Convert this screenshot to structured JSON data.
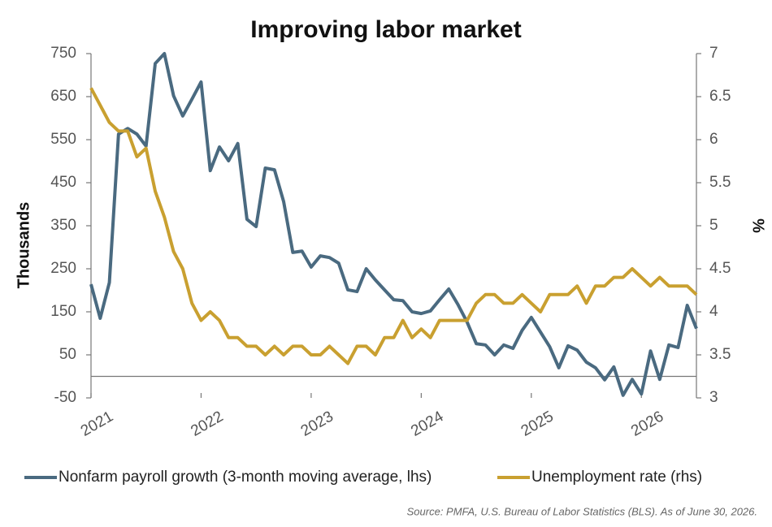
{
  "chart_data": {
    "type": "line",
    "title": "Improving labor market",
    "y_label": "Thousands",
    "y2_label": "%",
    "source": "Source: PMFA, U.S. Bureau of Labor Statistics (BLS). As of June 30, 2026.",
    "categories": [
      "2021",
      null,
      null,
      null,
      null,
      null,
      null,
      null,
      null,
      null,
      null,
      null,
      "2022",
      null,
      null,
      null,
      null,
      null,
      null,
      null,
      null,
      null,
      null,
      null,
      "2023",
      null,
      null,
      null,
      null,
      null,
      null,
      null,
      null,
      null,
      null,
      null,
      "2024",
      null,
      null,
      null,
      null,
      null,
      null,
      null,
      null,
      null,
      null,
      null,
      "2025",
      null,
      null,
      null,
      null,
      null,
      null,
      null,
      null,
      null,
      null,
      null,
      "2026",
      null,
      null,
      null,
      null,
      null,
      null
    ],
    "ylim": [
      -50,
      750
    ],
    "yticks": [
      -50,
      50,
      150,
      250,
      350,
      450,
      550,
      650,
      750
    ],
    "y2lim": [
      3,
      7
    ],
    "y2ticks": [
      3,
      3.5,
      4,
      4.5,
      5,
      5.5,
      6,
      6.5,
      7
    ],
    "series": [
      {
        "name": "Nonfarm payroll growth (3-month moving average, lhs)",
        "color": "#4a6a80",
        "values": [
          214,
          135,
          218,
          563,
          576,
          563,
          535,
          727,
          750,
          652,
          605,
          644,
          684,
          478,
          533,
          501,
          541,
          365,
          348,
          484,
          480,
          406,
          288,
          291,
          254,
          280,
          276,
          263,
          201,
          197,
          250,
          224,
          201,
          178,
          176,
          150,
          146,
          152,
          178,
          203,
          167,
          126,
          76,
          73,
          50,
          73,
          65,
          107,
          137,
          103,
          69,
          20,
          71,
          61,
          33,
          20,
          -8,
          22,
          -44,
          -7,
          -41,
          59,
          -7,
          73,
          67,
          165,
          111
        ]
      },
      {
        "name": "Unemployment rate (rhs)",
        "color": "#c9a030",
        "axis": "y2",
        "values": [
          6.6,
          6.4,
          6.2,
          6.1,
          6.1,
          5.8,
          5.9,
          5.4,
          5.1,
          4.7,
          4.5,
          4.1,
          3.9,
          4.0,
          3.9,
          3.7,
          3.7,
          3.6,
          3.6,
          3.5,
          3.6,
          3.5,
          3.6,
          3.6,
          3.5,
          3.5,
          3.6,
          3.5,
          3.4,
          3.6,
          3.6,
          3.5,
          3.7,
          3.7,
          3.9,
          3.7,
          3.8,
          3.7,
          3.9,
          3.9,
          3.9,
          3.9,
          4.1,
          4.2,
          4.2,
          4.1,
          4.1,
          4.2,
          4.1,
          4.0,
          4.2,
          4.2,
          4.2,
          4.3,
          4.1,
          4.3,
          4.3,
          4.4,
          4.4,
          4.5,
          4.4,
          4.3,
          4.4,
          4.3,
          4.3,
          4.3,
          4.2
        ]
      }
    ]
  }
}
